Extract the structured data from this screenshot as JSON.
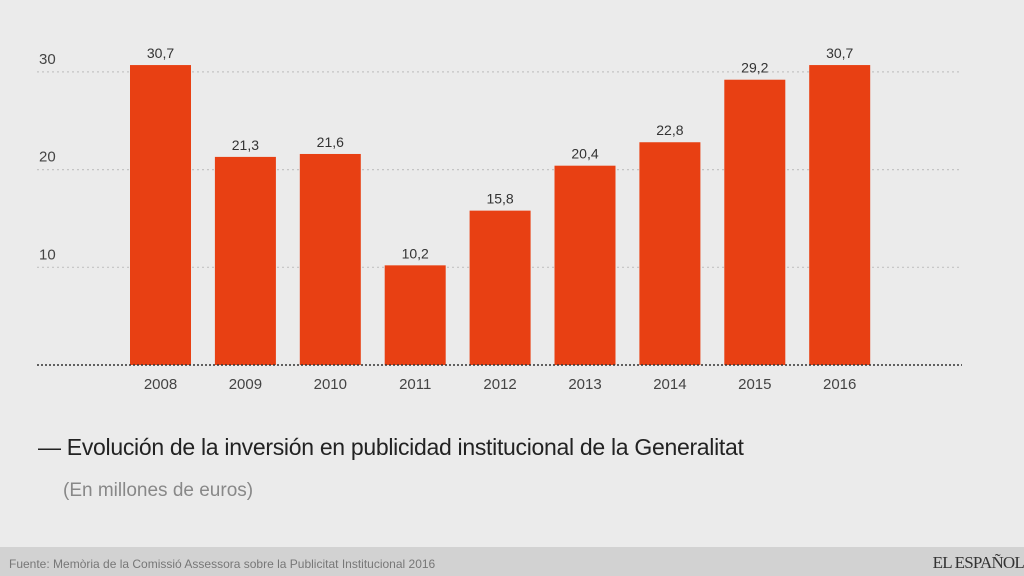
{
  "chart_data": {
    "type": "bar",
    "title": "Evolución de la inversión en publicidad institucional de la Generalitat",
    "subtitle": "(En millones de euros)",
    "xlabel": "",
    "ylabel": "",
    "categories": [
      "2008",
      "2009",
      "2010",
      "2011",
      "2012",
      "2013",
      "2014",
      "2015",
      "2016"
    ],
    "values": [
      30.7,
      21.3,
      21.6,
      10.2,
      15.8,
      20.4,
      22.8,
      29.2,
      30.7
    ],
    "value_labels": [
      "30,7",
      "21,3",
      "21,6",
      "10,2",
      "15,8",
      "20,4",
      "22,8",
      "29,2",
      "30,7"
    ],
    "ylim": [
      0,
      30
    ],
    "yticks": [
      10,
      20,
      30
    ],
    "ytick_labels": [
      "10",
      "20",
      "30"
    ],
    "grid": true,
    "legend": "none",
    "bar_color": "#e84013"
  },
  "header": {
    "title_dash": "—",
    "title": "Evolución de la inversión en publicidad institucional de la Generalitat",
    "subtitle": "(En millones de euros)"
  },
  "footer": {
    "source": "Fuente: Memòria de la Comissió Assessora sobre la Publicitat Institucional 2016",
    "logo": "EL ESPAÑOL"
  }
}
